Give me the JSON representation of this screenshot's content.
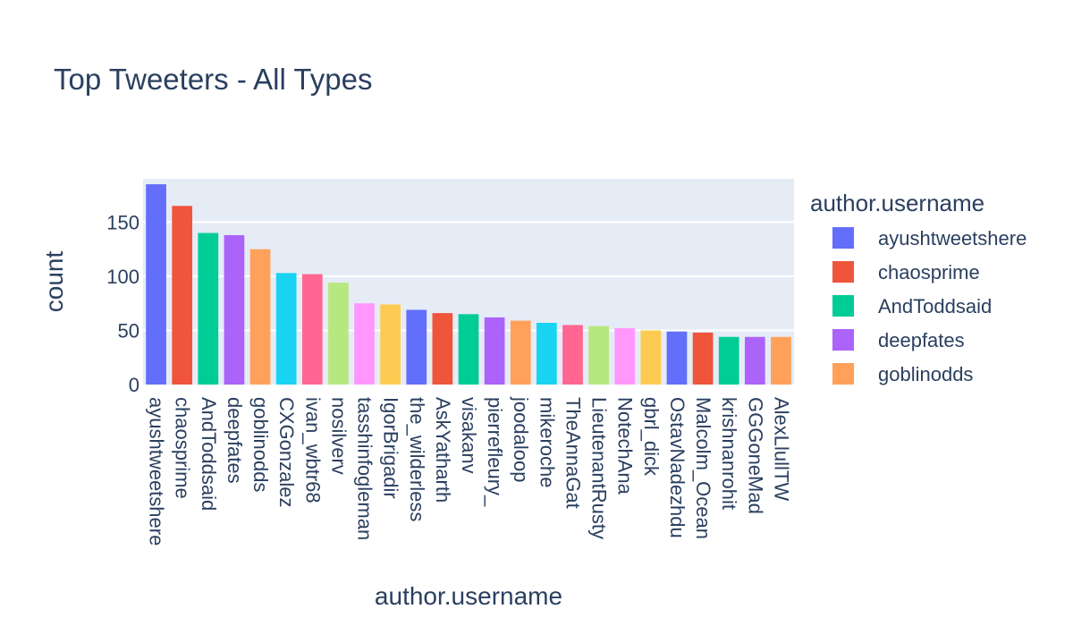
{
  "chart_data": {
    "type": "bar",
    "title": "Top Tweeters - All Types",
    "xlabel": "author.username",
    "ylabel": "count",
    "ylim": [
      0,
      190
    ],
    "yticks": [
      0,
      50,
      100,
      150
    ],
    "grid": true,
    "legend": {
      "title": "author.username",
      "placement": "right",
      "visible_entries": [
        "ayushtweetshere",
        "chaosprime",
        "AndToddsaid",
        "deepfates",
        "goblinodds"
      ]
    },
    "palette": [
      "#636efa",
      "#ef553b",
      "#00cc96",
      "#ab63fa",
      "#ffa15a",
      "#19d3f3",
      "#ff6692",
      "#b6e880",
      "#ff97ff",
      "#fecb52"
    ],
    "plot_background": "#e5ecf6",
    "categories": [
      "ayushtweetshere",
      "chaosprime",
      "AndToddsaid",
      "deepfates",
      "goblinodds",
      "CXGonzalez",
      "ivan_wbtr68",
      "nosilverv",
      "tasshinfogleman",
      "IgorBrigadir",
      "the_wilderless",
      "AskYatharth",
      "visakanv",
      "pierrefleury_",
      "joodaloop",
      "mikeroche",
      "TheAnnaGat",
      "LieutenantRusty",
      "NotechAna",
      "gbrl_dick",
      "OstavNadezhdu",
      "Malcolm_Ocean",
      "krishnanrohit",
      "GGGoneMad",
      "AlexLlullTW"
    ],
    "values": [
      185,
      165,
      140,
      138,
      125,
      103,
      102,
      94,
      75,
      74,
      69,
      66,
      65,
      62,
      59,
      57,
      55,
      54,
      52,
      50,
      49,
      48,
      44,
      44,
      44
    ]
  }
}
